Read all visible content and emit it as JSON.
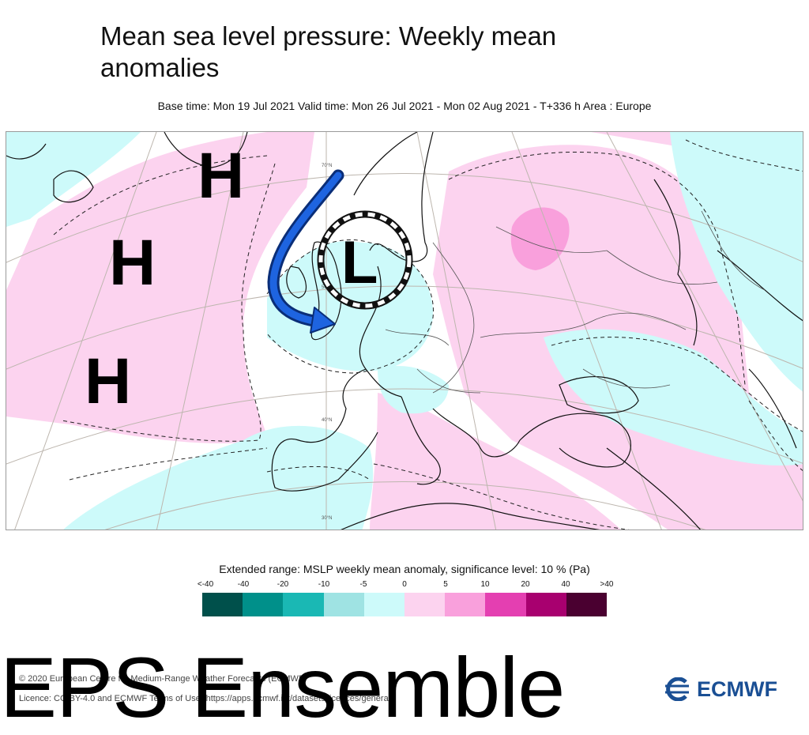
{
  "title": "Mean sea level pressure: Weekly mean anomalies",
  "subtitle": "Base time: Mon 19 Jul 2021 Valid time: Mon 26 Jul 2021 - Mon 02 Aug 2021 - T+336 h Area : Europe",
  "map": {
    "annotations": {
      "high_1": "H",
      "high_2": "H",
      "high_3": "H",
      "low_1": "L"
    },
    "lat_labels": [
      "70°N",
      "50°N",
      "40°N",
      "30°N"
    ]
  },
  "legend": {
    "title": "Extended range: MSLP weekly mean anomaly, significance level: 10 % (Pa)",
    "labels": [
      "<-40",
      "-40",
      "-20",
      "-10",
      "-5",
      "0",
      "5",
      "10",
      "20",
      "40",
      ">40"
    ],
    "colors": [
      "#00504b",
      "#00908a",
      "#1ab8b4",
      "#9fe3e3",
      "#cdfafa",
      "#fcd3ef",
      "#f9a0dc",
      "#e43fb1",
      "#a8006f",
      "#4a0030"
    ]
  },
  "footer": {
    "line1": "© 2020 European Centre for Medium-Range Weather Forecasts (ECMWF)",
    "line2": "Licence: CC-BY-4.0 and ECMWF Terms of Use (https://apps.ecmwf.int/datasets/licences/general/)"
  },
  "overlay": {
    "text": "EPS Ensemble"
  },
  "logo": {
    "text": "ECMWF"
  }
}
